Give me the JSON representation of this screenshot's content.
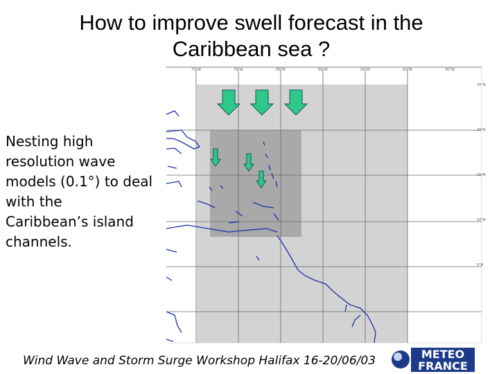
{
  "title": "How to improve swell forecast in the Caribbean sea ?",
  "body": [
    "Nesting high",
    "resolution wave",
    "models (0.1°) to deal",
    "with the",
    "Caribbean’s island",
    "channels."
  ],
  "footer": "Wind Wave and Storm Surge Workshop Halifax 16-20/06/03",
  "logo": [
    "METEO",
    "FRANCE"
  ],
  "map": {
    "longitude_labels": [
      "75°W",
      "70°W",
      "65°W",
      "60°W",
      "55°W",
      "50°W",
      "45°W"
    ],
    "latitude_labels": [
      "25°N",
      "20°N",
      "15°N",
      "10°N",
      "5°N"
    ]
  }
}
